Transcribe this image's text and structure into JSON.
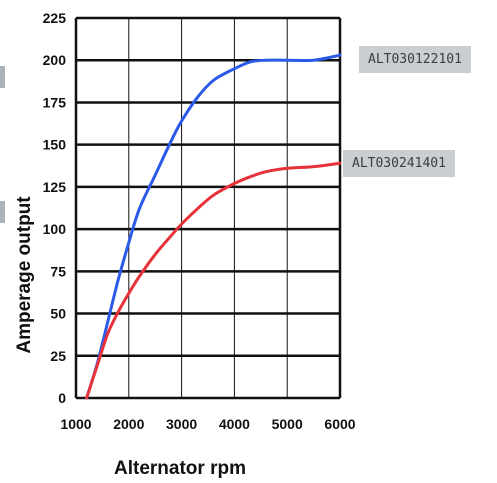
{
  "chart_data": {
    "type": "line",
    "title": "",
    "xlabel": "Alternator rpm",
    "ylabel": "Amperage output",
    "xlim": [
      1000,
      6000
    ],
    "ylim": [
      0,
      225
    ],
    "x_ticks": [
      "1000",
      "2000",
      "3000",
      "4000",
      "5000",
      "6000"
    ],
    "y_ticks": [
      "0",
      "25",
      "50",
      "75",
      "100",
      "125",
      "150",
      "175",
      "200",
      "225"
    ],
    "grid": true,
    "series": [
      {
        "name": "ALT030122101",
        "color": "#2b59e8",
        "x": [
          1200,
          1400,
          1600,
          1800,
          2000,
          2200,
          2500,
          2800,
          3000,
          3300,
          3600,
          4000,
          4300,
          4600,
          5000,
          5500,
          6000
        ],
        "y": [
          0,
          20,
          45,
          70,
          92,
          112,
          132,
          152,
          164,
          178,
          188,
          195,
          199,
          200,
          200,
          200,
          203
        ]
      },
      {
        "name": "ALT030241401",
        "color": "#e8323a",
        "x": [
          1200,
          1400,
          1600,
          1800,
          2000,
          2200,
          2500,
          2800,
          3000,
          3300,
          3600,
          4000,
          4300,
          4600,
          5000,
          5500,
          6000
        ],
        "y": [
          0,
          19,
          38,
          51,
          62,
          72,
          85,
          96,
          103,
          112,
          120,
          127,
          131,
          134,
          136,
          137,
          139
        ]
      }
    ]
  },
  "colors": {
    "grid": "#111111",
    "tag_background": "#c9ced3",
    "tag_text": "#3a3f44"
  }
}
